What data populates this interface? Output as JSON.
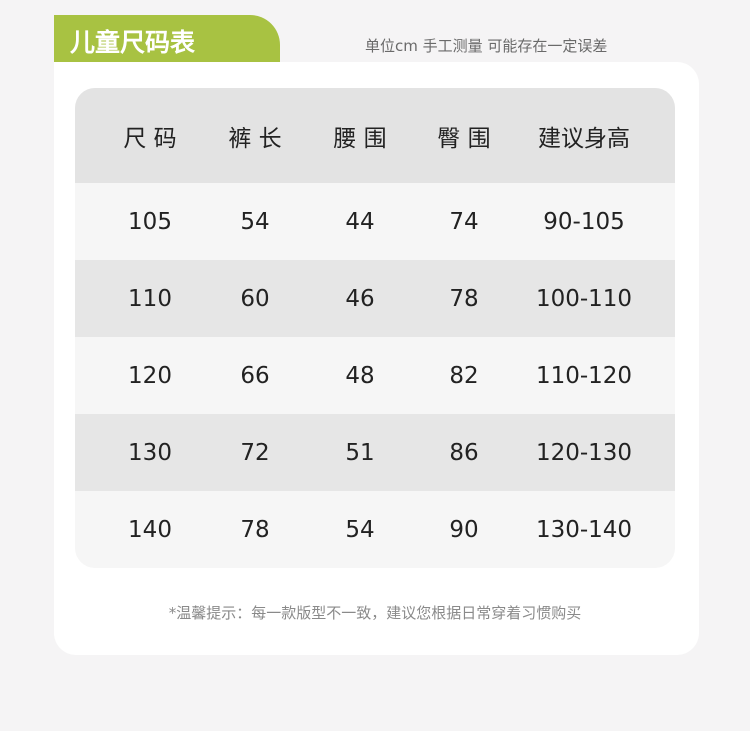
{
  "title": "儿童尺码表",
  "unit_note": "单位cm 手工测量 可能存在一定误差",
  "colors": {
    "accent": "#a8c242",
    "header_bg": "#e3e3e3",
    "row_alt": "#e6e6e6",
    "row": "#f6f6f6"
  },
  "table": {
    "headers": [
      "尺 码",
      "裤 长",
      "腰 围",
      "臀 围",
      "建议身高"
    ],
    "rows": [
      [
        "105",
        "54",
        "44",
        "74",
        "90-105"
      ],
      [
        "110",
        "60",
        "46",
        "78",
        "100-110"
      ],
      [
        "120",
        "66",
        "48",
        "82",
        "110-120"
      ],
      [
        "130",
        "72",
        "51",
        "86",
        "120-130"
      ],
      [
        "140",
        "78",
        "54",
        "90",
        "130-140"
      ]
    ]
  },
  "tip": "*温馨提示：每一款版型不一致，建议您根据日常穿着习惯购买"
}
